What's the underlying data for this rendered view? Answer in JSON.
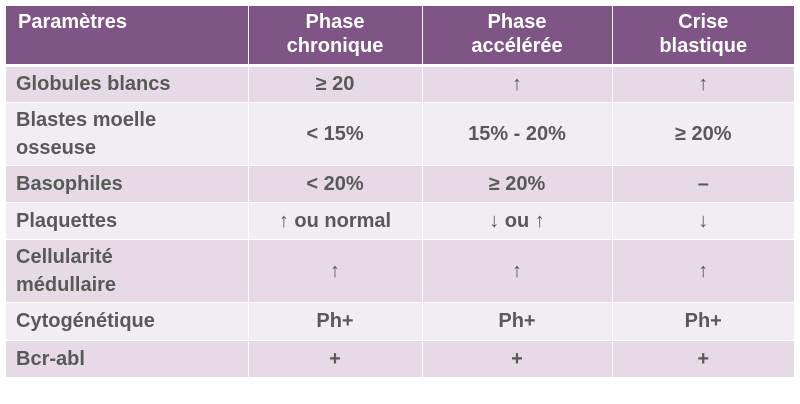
{
  "colors": {
    "header_bg": "#7e5585",
    "row_dark": "#e5dae6",
    "row_light": "#f2edf3",
    "text": "#595959"
  },
  "header": {
    "col1": "Paramètres",
    "col2_line1": "Phase",
    "col2_line2": "chronique",
    "col3_line1": "Phase",
    "col3_line2": "accélérée",
    "col4_line1": "Crise",
    "col4_line2": "blastique"
  },
  "rows": [
    {
      "label": "Globules blancs",
      "chronique": "≥ 20",
      "acceleree": "↑",
      "blastique": "↑"
    },
    {
      "label_line1": "Blastes moelle",
      "label_line2": "osseuse",
      "chronique": "< 15%",
      "acceleree": "15% - 20%",
      "blastique": "≥ 20%"
    },
    {
      "label": "Basophiles",
      "chronique": "< 20%",
      "acceleree": "≥ 20%",
      "blastique": "–"
    },
    {
      "label": "Plaquettes",
      "chronique": "↑ ou normal",
      "acceleree": "↓ ou ↑",
      "blastique": "↓"
    },
    {
      "label_line1": "Cellularité",
      "label_line2": "médullaire",
      "chronique": "↑",
      "acceleree": "↑",
      "blastique": "↑"
    },
    {
      "label": "Cytogénétique",
      "chronique": "Ph+",
      "acceleree": "Ph+",
      "blastique": "Ph+"
    },
    {
      "label": "Bcr-abl",
      "chronique": "+",
      "acceleree": "+",
      "blastique": "+"
    }
  ]
}
